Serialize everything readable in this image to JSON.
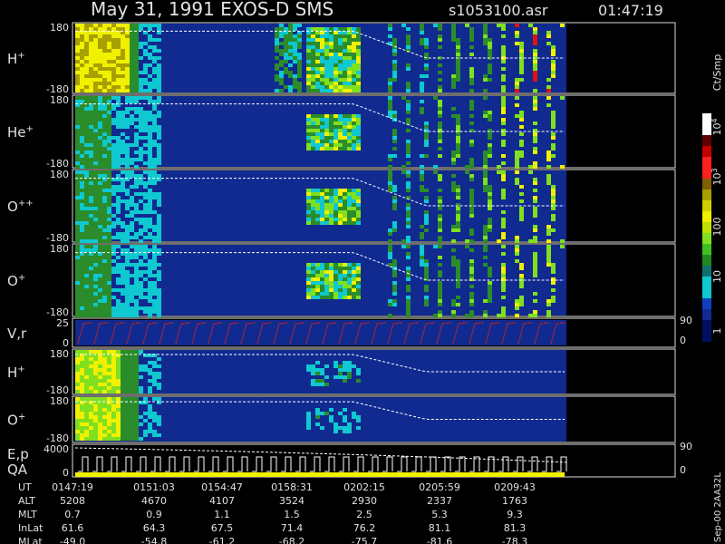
{
  "header": {
    "title": "May 31, 1991   EXOS-D SMS",
    "file": "s1053100.asr",
    "time": "01:47:19"
  },
  "panels": [
    {
      "label": "H",
      "sup": "+",
      "ticks": [
        "180",
        "-180"
      ]
    },
    {
      "label": "He",
      "sup": "+",
      "ticks": [
        "180",
        "-180"
      ]
    },
    {
      "label": "O",
      "sup": "++",
      "ticks": [
        "180",
        "-180"
      ]
    },
    {
      "label": "O",
      "sup": "+",
      "ticks": [
        "180",
        "-180"
      ]
    },
    {
      "label": "V,r",
      "ticks": [
        "25",
        "0"
      ],
      "right_ticks": [
        "90",
        "0"
      ]
    },
    {
      "label": "H",
      "sup": "+",
      "ticks": [
        "180",
        "-180"
      ]
    },
    {
      "label": "O",
      "sup": "+",
      "ticks": [
        "180",
        "-180"
      ]
    },
    {
      "label": "E,p",
      "label2": "QA",
      "ticks": [
        "4000",
        "0"
      ],
      "right_ticks": [
        "90",
        "0"
      ]
    }
  ],
  "colorbar": {
    "title": "Ct/Smp",
    "ticks": [
      {
        "base": "10",
        "exp": "4"
      },
      {
        "base": "10",
        "exp": "3"
      },
      "100",
      "10",
      "1"
    ]
  },
  "footer": {
    "rows": [
      {
        "label": "UT",
        "values": [
          "0147:19",
          "0151:03",
          "0154:47",
          "0158:31",
          "0202:15",
          "0205:59",
          "0209:43"
        ]
      },
      {
        "label": "ALT",
        "values": [
          "5208",
          "4670",
          "4107",
          "3524",
          "2930",
          "2337",
          "1763"
        ]
      },
      {
        "label": "MLT",
        "values": [
          "0.7",
          "0.9",
          "1.1",
          "1.5",
          "2.5",
          "5.3",
          "9.3"
        ]
      },
      {
        "label": "InLat",
        "values": [
          "61.6",
          "64.3",
          "67.5",
          "71.4",
          "76.2",
          "81.1",
          "81.3"
        ]
      },
      {
        "label": "MLat",
        "values": [
          "-49.0",
          "-54.8",
          "-61.2",
          "-68.2",
          "-75.7",
          "-81.6",
          "-78.3"
        ]
      }
    ]
  },
  "stamp": "Sep-00 2AA32L"
}
